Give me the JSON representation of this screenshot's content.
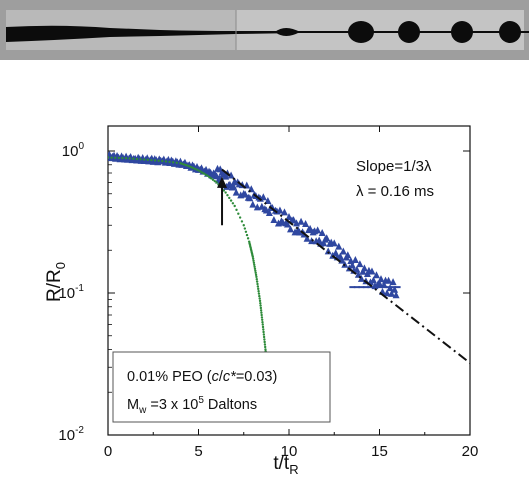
{
  "colors": {
    "data": "#2f47a0",
    "newtonian_fit": "#2e8b3a",
    "power_law_fit": "#111111",
    "strip_background": "#9b9b9b",
    "strip_fluid": "#0c0c0c"
  },
  "photo_strip": {
    "description_free": true,
    "drop_count": 4
  },
  "chart_data": {
    "type": "scatter",
    "xlabel_main": "t/t",
    "xlabel_sub": "R",
    "ylabel_main": "R/R",
    "ylabel_sub": "0",
    "xlim": [
      0,
      20
    ],
    "ylim": [
      0.01,
      1.5
    ],
    "yscale": "log",
    "x_ticks": [
      "0",
      "5",
      "10",
      "15",
      "20"
    ],
    "x_tick_values": [
      0,
      5,
      10,
      15,
      20
    ],
    "y_ticks": [
      {
        "base": "10",
        "exp": "0",
        "value": 1
      },
      {
        "base": "10",
        "exp": "-1",
        "value": 0.1
      },
      {
        "base": "10",
        "exp": "-2",
        "value": 0.01
      }
    ],
    "annotation_slope": "Slope=1/3λ",
    "annotation_lambda": "λ = 0.16 ms",
    "legend": {
      "line1_prefix": "0.01% PEO (",
      "line1_italic_c": "c",
      "line1_sep": "/",
      "line1_italic_cstar": "c*",
      "line1_suffix": "=0.03)",
      "line2_prefix": "M",
      "line2_sub": "w",
      "line2_mid": " =3 x 10",
      "line2_sup": "5",
      "line2_suffix": " Daltons"
    },
    "arrow_at_x": 6.3,
    "series": [
      {
        "kind": "measured",
        "x": [
          0,
          0.5,
          1,
          1.5,
          2,
          2.5,
          3,
          3.5,
          4,
          4.5,
          5,
          5.5,
          6,
          6.3,
          6.6,
          7,
          7.5,
          8,
          8.5,
          9,
          9.5,
          10,
          10.5,
          11,
          11.5,
          12,
          12.5,
          13,
          13.5,
          14,
          14.5,
          15,
          15.5,
          16
        ],
        "y": [
          0.92,
          0.9,
          0.89,
          0.88,
          0.87,
          0.86,
          0.85,
          0.84,
          0.82,
          0.79,
          0.75,
          0.71,
          0.67,
          0.66,
          0.62,
          0.58,
          0.53,
          0.47,
          0.43,
          0.38,
          0.34,
          0.32,
          0.29,
          0.27,
          0.25,
          0.23,
          0.2,
          0.18,
          0.16,
          0.14,
          0.13,
          0.115,
          0.11,
          0.105
        ]
      },
      {
        "kind": "newtonian_fit",
        "x": [
          0,
          1,
          2,
          3,
          4,
          4.5,
          5,
          5.5,
          6,
          6.5,
          7,
          7.5,
          7.8,
          8,
          8.2,
          8.4,
          8.55,
          8.7,
          8.8
        ],
        "y": [
          0.9,
          0.89,
          0.87,
          0.85,
          0.82,
          0.78,
          0.73,
          0.67,
          0.6,
          0.51,
          0.41,
          0.3,
          0.23,
          0.18,
          0.13,
          0.088,
          0.06,
          0.04,
          0.03
        ]
      },
      {
        "kind": "power_law_fit",
        "x": [
          6.3,
          20.3
        ],
        "y": [
          0.74,
          0.03
        ]
      }
    ]
  }
}
